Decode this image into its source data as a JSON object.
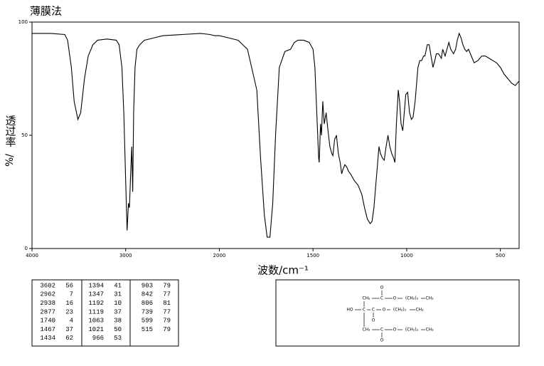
{
  "chart_data": {
    "type": "line",
    "title": "薄膜法",
    "xlabel": "波数/cm⁻¹",
    "ylabel": "透过率",
    "ylabel_unit": "%/",
    "xlim": [
      4000,
      400
    ],
    "x_scale_break": 2000,
    "xticks": [
      4000,
      3000,
      2000,
      1500,
      1000,
      500
    ],
    "ylim": [
      0,
      100
    ],
    "yticks": [
      0,
      50,
      100
    ],
    "grid": false,
    "series": [
      {
        "color": "#000000",
        "x": [
          4000,
          3800,
          3650,
          3620,
          3580,
          3550,
          3510,
          3480,
          3440,
          3400,
          3350,
          3300,
          3200,
          3100,
          3070,
          3040,
          3020,
          3000,
          2985,
          2970,
          2960,
          2945,
          2935,
          2925,
          2915,
          2900,
          2880,
          2850,
          2800,
          2700,
          2600,
          2400,
          2200,
          2100,
          2050,
          2000,
          1950,
          1900,
          1850,
          1800,
          1780,
          1760,
          1745,
          1730,
          1715,
          1700,
          1680,
          1650,
          1620,
          1600,
          1580,
          1550,
          1520,
          1500,
          1490,
          1480,
          1470,
          1467,
          1460,
          1455,
          1448,
          1440,
          1430,
          1420,
          1410,
          1400,
          1394,
          1385,
          1375,
          1365,
          1355,
          1347,
          1340,
          1330,
          1320,
          1310,
          1300,
          1280,
          1260,
          1240,
          1225,
          1210,
          1195,
          1185,
          1175,
          1165,
          1155,
          1148,
          1140,
          1130,
          1120,
          1110,
          1100,
          1090,
          1080,
          1070,
          1063,
          1055,
          1045,
          1038,
          1030,
          1021,
          1015,
          1005,
          995,
          985,
          975,
          966,
          955,
          940,
          930,
          920,
          910,
          903,
          890,
          880,
          870,
          860,
          850,
          842,
          830,
          815,
          808,
          795,
          785,
          775,
          765,
          750,
          739,
          730,
          720,
          710,
          700,
          690,
          680,
          670,
          660,
          650,
          640,
          620,
          599,
          580,
          560,
          540,
          520,
          500,
          480,
          460,
          440,
          420,
          400
        ],
        "values": [
          95,
          95,
          94.5,
          92,
          80,
          65,
          57,
          60,
          75,
          85,
          90,
          92,
          92.5,
          92,
          90,
          80,
          60,
          30,
          8,
          20,
          18,
          35,
          45,
          25,
          60,
          80,
          88,
          90,
          92,
          93,
          94,
          94.5,
          95,
          94.5,
          94,
          94,
          93,
          92,
          88,
          70,
          40,
          15,
          5,
          5,
          20,
          50,
          80,
          87,
          88,
          91,
          92,
          92,
          91,
          88,
          80,
          60,
          40,
          38,
          55,
          50,
          65,
          55,
          60,
          52,
          45,
          42,
          41,
          48,
          50,
          42,
          38,
          33,
          35,
          37,
          36,
          34,
          33,
          30,
          28,
          24,
          18,
          13,
          11,
          12,
          18,
          28,
          38,
          45,
          42,
          40,
          39,
          45,
          50,
          45,
          42,
          40,
          38,
          55,
          70,
          65,
          55,
          52,
          58,
          68,
          69,
          60,
          57,
          58,
          65,
          80,
          83,
          83,
          85,
          85,
          90,
          90,
          85,
          80,
          83,
          86,
          86,
          84,
          88,
          85,
          88,
          91,
          88,
          86,
          88,
          92,
          95,
          93,
          90,
          88,
          87,
          88,
          86,
          84,
          82,
          83,
          85,
          85,
          84,
          83,
          82,
          80,
          77,
          75,
          73,
          72,
          74
        ]
      }
    ]
  },
  "peak_table": [
    [
      3602,
      56
    ],
    [
      2962,
      7
    ],
    [
      2938,
      16
    ],
    [
      2877,
      23
    ],
    [
      1740,
      4
    ],
    [
      1467,
      37
    ],
    [
      1434,
      62
    ],
    [
      1394,
      41
    ],
    [
      1347,
      31
    ],
    [
      1192,
      10
    ],
    [
      1119,
      37
    ],
    [
      1063,
      38
    ],
    [
      1021,
      50
    ],
    [
      966,
      53
    ],
    [
      903,
      79
    ],
    [
      842,
      77
    ],
    [
      806,
      81
    ],
    [
      739,
      77
    ],
    [
      599,
      79
    ],
    [
      515,
      79
    ]
  ],
  "structure": {
    "top": [
      "O",
      "CH₂",
      "C",
      "O",
      "(CH₂)₃",
      "CH₃"
    ],
    "middle": [
      "HO",
      "C",
      "C",
      "O",
      "(CH₂)₃",
      "CH₃",
      "O"
    ],
    "bottom": [
      "CH₂",
      "C",
      "O",
      "(CH₂)₃",
      "CH₃",
      "O"
    ]
  }
}
